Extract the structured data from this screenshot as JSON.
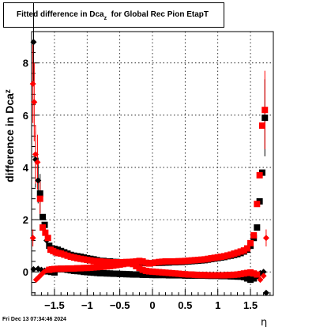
{
  "title": {
    "main": "Fitted difference in Dca",
    "sub": "z",
    "rest": "  for Global Rec Pion EtapT"
  },
  "footer": {
    "timestamp": "Fri Dec 13 07:34:46 2024"
  },
  "colors": {
    "series_a": "#000000",
    "series_b": "#ff0000",
    "grid": "#000000"
  },
  "chart_data": {
    "type": "scatter",
    "title": "Fitted difference in Dca_z  for Global Rec Pion EtapT",
    "xlabel": "η",
    "ylabel": "difference in Dca_z",
    "xlim": [
      -1.85,
      1.85
    ],
    "ylim": [
      -0.9,
      9.2
    ],
    "x_ticks": [
      -1.5,
      -1,
      -0.5,
      0,
      0.5,
      1,
      1.5
    ],
    "x_tick_labels": [
      "−1.5",
      "−1",
      "−0.5",
      "0",
      "0.5",
      "1",
      "1.5"
    ],
    "y_ticks": [
      0,
      2,
      4,
      6,
      8
    ],
    "y_tick_labels": [
      "0",
      "2",
      "4",
      "6",
      "8"
    ],
    "grid": true,
    "series": [
      {
        "marker": "square",
        "color": "#000000",
        "points": [
          [
            -1.82,
            8.8
          ],
          [
            -1.79,
            4.3
          ],
          [
            -1.75,
            3.5
          ],
          [
            -1.72,
            3.0
          ],
          [
            -1.68,
            2.1
          ],
          [
            -1.65,
            1.8
          ],
          [
            -1.62,
            1.2
          ],
          [
            -1.58,
            1.0
          ],
          [
            -1.55,
            0.9
          ],
          [
            -1.5,
            0.88
          ],
          [
            -1.45,
            0.85
          ],
          [
            -1.4,
            0.8
          ],
          [
            -1.35,
            0.75
          ],
          [
            -1.3,
            0.7
          ],
          [
            -1.25,
            0.65
          ],
          [
            -1.2,
            0.62
          ],
          [
            -1.15,
            0.6
          ],
          [
            -1.1,
            0.58
          ],
          [
            -1.05,
            0.55
          ],
          [
            -1.0,
            0.52
          ],
          [
            -0.95,
            0.5
          ],
          [
            -0.9,
            0.48
          ],
          [
            -0.85,
            0.45
          ],
          [
            -0.8,
            0.42
          ],
          [
            -0.75,
            0.42
          ],
          [
            -0.7,
            0.4
          ],
          [
            -0.65,
            0.4
          ],
          [
            -0.6,
            0.38
          ],
          [
            -0.55,
            0.38
          ],
          [
            -0.5,
            0.37
          ],
          [
            -0.45,
            0.37
          ],
          [
            -0.4,
            0.36
          ],
          [
            -0.35,
            0.36
          ],
          [
            -0.3,
            0.35
          ],
          [
            -0.25,
            0.35
          ],
          [
            -0.2,
            0.35
          ],
          [
            -0.15,
            0.35
          ],
          [
            -0.1,
            0.34
          ],
          [
            -0.05,
            0.34
          ],
          [
            0.0,
            0.34
          ],
          [
            0.05,
            0.34
          ],
          [
            0.1,
            0.35
          ],
          [
            0.15,
            0.35
          ],
          [
            0.2,
            0.36
          ],
          [
            0.25,
            0.36
          ],
          [
            0.3,
            0.37
          ],
          [
            0.35,
            0.37
          ],
          [
            0.4,
            0.38
          ],
          [
            0.45,
            0.38
          ],
          [
            0.5,
            0.39
          ],
          [
            0.55,
            0.4
          ],
          [
            0.6,
            0.41
          ],
          [
            0.65,
            0.42
          ],
          [
            0.7,
            0.43
          ],
          [
            0.75,
            0.44
          ],
          [
            0.8,
            0.45
          ],
          [
            0.85,
            0.47
          ],
          [
            0.9,
            0.49
          ],
          [
            0.95,
            0.51
          ],
          [
            1.0,
            0.53
          ],
          [
            1.05,
            0.55
          ],
          [
            1.1,
            0.57
          ],
          [
            1.15,
            0.6
          ],
          [
            1.2,
            0.62
          ],
          [
            1.25,
            0.65
          ],
          [
            1.3,
            0.68
          ],
          [
            1.35,
            0.72
          ],
          [
            1.4,
            0.78
          ],
          [
            1.45,
            0.85
          ],
          [
            1.5,
            1.0
          ],
          [
            1.55,
            1.3
          ],
          [
            1.6,
            1.7
          ],
          [
            1.64,
            2.7
          ],
          [
            1.68,
            3.8
          ],
          [
            1.72,
            5.9
          ],
          [
            -1.82,
            0.1
          ],
          [
            -1.75,
            0.12
          ],
          [
            -1.7,
            0.08
          ],
          [
            -1.65,
            0.05
          ],
          [
            -1.6,
            0.02
          ],
          [
            -1.55,
            0.0
          ],
          [
            -1.5,
            -0.02
          ],
          [
            -1.45,
            0.1
          ],
          [
            -1.4,
            0.12
          ],
          [
            -1.35,
            0.1
          ],
          [
            -1.3,
            0.08
          ],
          [
            -1.25,
            0.06
          ],
          [
            -1.2,
            0.04
          ],
          [
            -1.15,
            0.03
          ],
          [
            -1.1,
            0.02
          ],
          [
            -1.05,
            0.0
          ],
          [
            -1.0,
            -0.01
          ],
          [
            -0.95,
            -0.02
          ],
          [
            -0.9,
            -0.03
          ],
          [
            -0.85,
            -0.04
          ],
          [
            -0.8,
            -0.05
          ],
          [
            -0.75,
            -0.05
          ],
          [
            -0.7,
            -0.06
          ],
          [
            -0.65,
            -0.06
          ],
          [
            -0.6,
            -0.07
          ],
          [
            -0.55,
            -0.07
          ],
          [
            -0.5,
            -0.08
          ],
          [
            -0.45,
            -0.08
          ],
          [
            -0.4,
            -0.09
          ],
          [
            -0.35,
            -0.09
          ],
          [
            -0.3,
            -0.1
          ],
          [
            -0.25,
            -0.1
          ],
          [
            -0.2,
            -0.1
          ],
          [
            -0.15,
            -0.11
          ],
          [
            -0.1,
            -0.11
          ],
          [
            -0.05,
            -0.11
          ],
          [
            0.0,
            -0.12
          ],
          [
            0.05,
            -0.12
          ],
          [
            0.1,
            -0.12
          ],
          [
            0.15,
            -0.12
          ],
          [
            0.2,
            -0.12
          ],
          [
            0.25,
            -0.13
          ],
          [
            0.3,
            -0.13
          ],
          [
            0.35,
            -0.13
          ],
          [
            0.4,
            -0.13
          ],
          [
            0.45,
            -0.13
          ],
          [
            0.5,
            -0.14
          ],
          [
            0.55,
            -0.14
          ],
          [
            0.6,
            -0.14
          ],
          [
            0.65,
            -0.14
          ],
          [
            0.7,
            -0.14
          ],
          [
            0.75,
            -0.14
          ],
          [
            0.8,
            -0.14
          ],
          [
            0.85,
            -0.15
          ],
          [
            0.9,
            -0.15
          ],
          [
            0.95,
            -0.15
          ],
          [
            1.0,
            -0.15
          ],
          [
            1.05,
            -0.16
          ],
          [
            1.1,
            -0.16
          ],
          [
            1.15,
            -0.16
          ],
          [
            1.2,
            -0.17
          ],
          [
            1.25,
            -0.17
          ],
          [
            1.3,
            -0.18
          ],
          [
            1.35,
            -0.18
          ],
          [
            1.4,
            -0.2
          ],
          [
            1.45,
            -0.25
          ],
          [
            1.5,
            -0.3
          ],
          [
            1.55,
            -0.25
          ],
          [
            1.6,
            -0.15
          ],
          [
            1.65,
            -0.05
          ],
          [
            1.7,
            0.0
          ],
          [
            1.74,
            -0.8
          ]
        ]
      },
      {
        "marker": "square",
        "color": "#ff0000",
        "points": [
          [
            -1.83,
            7.2
          ],
          [
            -1.81,
            6.5
          ],
          [
            -1.79,
            4.5
          ],
          [
            -1.76,
            4.2
          ],
          [
            -1.72,
            2.8
          ],
          [
            -1.68,
            1.7
          ],
          [
            -1.64,
            1.5
          ],
          [
            -1.6,
            1.3
          ],
          [
            -1.56,
            0.85
          ],
          [
            -1.52,
            0.8
          ],
          [
            -1.48,
            0.75
          ],
          [
            -1.44,
            0.72
          ],
          [
            -1.4,
            0.7
          ],
          [
            -1.35,
            0.66
          ],
          [
            -1.3,
            0.62
          ],
          [
            -1.25,
            0.58
          ],
          [
            -1.2,
            0.55
          ],
          [
            -1.15,
            0.52
          ],
          [
            -1.1,
            0.5
          ],
          [
            -1.05,
            0.48
          ],
          [
            -1.0,
            0.46
          ],
          [
            -0.95,
            0.44
          ],
          [
            -0.9,
            0.42
          ],
          [
            -0.85,
            0.41
          ],
          [
            -0.8,
            0.4
          ],
          [
            -0.75,
            0.39
          ],
          [
            -0.7,
            0.38
          ],
          [
            -0.65,
            0.37
          ],
          [
            -0.6,
            0.37
          ],
          [
            -0.55,
            0.37
          ],
          [
            -0.5,
            0.37
          ],
          [
            -0.45,
            0.37
          ],
          [
            -0.4,
            0.38
          ],
          [
            -0.35,
            0.38
          ],
          [
            -0.3,
            0.39
          ],
          [
            -0.25,
            0.4
          ],
          [
            -0.2,
            0.42
          ],
          [
            -0.15,
            0.4
          ],
          [
            -0.1,
            0.35
          ],
          [
            -0.05,
            0.32
          ],
          [
            0.0,
            0.34
          ],
          [
            0.05,
            0.36
          ],
          [
            0.1,
            0.38
          ],
          [
            0.15,
            0.39
          ],
          [
            0.2,
            0.4
          ],
          [
            0.25,
            0.4
          ],
          [
            0.3,
            0.4
          ],
          [
            0.35,
            0.4
          ],
          [
            0.4,
            0.41
          ],
          [
            0.45,
            0.41
          ],
          [
            0.5,
            0.42
          ],
          [
            0.55,
            0.43
          ],
          [
            0.6,
            0.44
          ],
          [
            0.65,
            0.45
          ],
          [
            0.7,
            0.46
          ],
          [
            0.75,
            0.47
          ],
          [
            0.8,
            0.48
          ],
          [
            0.85,
            0.5
          ],
          [
            0.9,
            0.52
          ],
          [
            0.95,
            0.54
          ],
          [
            1.0,
            0.56
          ],
          [
            1.05,
            0.58
          ],
          [
            1.1,
            0.6
          ],
          [
            1.15,
            0.63
          ],
          [
            1.2,
            0.66
          ],
          [
            1.25,
            0.7
          ],
          [
            1.3,
            0.74
          ],
          [
            1.35,
            0.78
          ],
          [
            1.4,
            0.82
          ],
          [
            1.45,
            0.9
          ],
          [
            1.5,
            1.1
          ],
          [
            1.55,
            1.4
          ],
          [
            1.6,
            2.6
          ],
          [
            1.64,
            3.7
          ],
          [
            1.68,
            5.6
          ],
          [
            1.72,
            6.2
          ],
          [
            -1.83,
            1.3
          ],
          [
            -1.78,
            -0.3
          ],
          [
            -1.74,
            -0.2
          ],
          [
            -1.7,
            -0.1
          ],
          [
            -1.66,
            0.0
          ],
          [
            -1.62,
            0.06
          ],
          [
            -1.58,
            0.08
          ],
          [
            -1.54,
            0.1
          ],
          [
            -1.5,
            0.11
          ],
          [
            -1.45,
            0.12
          ],
          [
            -1.4,
            0.12
          ],
          [
            -1.35,
            0.12
          ],
          [
            -1.3,
            0.13
          ],
          [
            -1.25,
            0.13
          ],
          [
            -1.2,
            0.13
          ],
          [
            -1.15,
            0.14
          ],
          [
            -1.1,
            0.14
          ],
          [
            -1.05,
            0.15
          ],
          [
            -1.0,
            0.15
          ],
          [
            -0.95,
            0.16
          ],
          [
            -0.9,
            0.17
          ],
          [
            -0.85,
            0.18
          ],
          [
            -0.8,
            0.19
          ],
          [
            -0.75,
            0.2
          ],
          [
            -0.7,
            0.21
          ],
          [
            -0.65,
            0.22
          ],
          [
            -0.6,
            0.24
          ],
          [
            -0.55,
            0.26
          ],
          [
            -0.5,
            0.28
          ],
          [
            -0.45,
            0.3
          ],
          [
            -0.4,
            0.32
          ],
          [
            -0.35,
            0.34
          ],
          [
            -0.3,
            0.3
          ],
          [
            -0.25,
            0.22
          ],
          [
            -0.2,
            0.15
          ],
          [
            -0.15,
            0.08
          ],
          [
            -0.1,
            0.04
          ],
          [
            -0.05,
            0.02
          ],
          [
            0.0,
            0.01
          ],
          [
            0.05,
            0.0
          ],
          [
            0.1,
            -0.01
          ],
          [
            0.15,
            -0.02
          ],
          [
            0.2,
            -0.03
          ],
          [
            0.25,
            -0.04
          ],
          [
            0.3,
            -0.05
          ],
          [
            0.35,
            -0.06
          ],
          [
            0.4,
            -0.07
          ],
          [
            0.45,
            -0.08
          ],
          [
            0.5,
            -0.09
          ],
          [
            0.55,
            -0.1
          ],
          [
            0.6,
            -0.1
          ],
          [
            0.65,
            -0.11
          ],
          [
            0.7,
            -0.12
          ],
          [
            0.75,
            -0.12
          ],
          [
            0.8,
            -0.12
          ],
          [
            0.85,
            -0.13
          ],
          [
            0.9,
            -0.13
          ],
          [
            0.95,
            -0.13
          ],
          [
            1.0,
            -0.13
          ],
          [
            1.05,
            -0.13
          ],
          [
            1.1,
            -0.13
          ],
          [
            1.15,
            -0.12
          ],
          [
            1.2,
            -0.12
          ],
          [
            1.25,
            -0.11
          ],
          [
            1.3,
            -0.1
          ],
          [
            1.35,
            -0.08
          ],
          [
            1.4,
            -0.06
          ],
          [
            1.45,
            -0.04
          ],
          [
            1.5,
            -0.02
          ],
          [
            1.55,
            -0.06
          ],
          [
            1.6,
            -0.1
          ],
          [
            1.65,
            -0.3
          ],
          [
            1.7,
            -0.15
          ],
          [
            1.74,
            1.3
          ]
        ]
      }
    ]
  }
}
